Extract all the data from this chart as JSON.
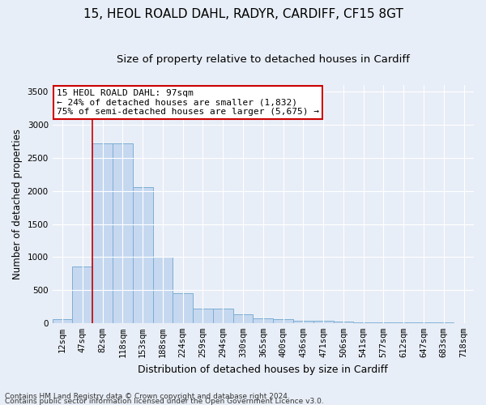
{
  "title1": "15, HEOL ROALD DAHL, RADYR, CARDIFF, CF15 8GT",
  "title2": "Size of property relative to detached houses in Cardiff",
  "xlabel": "Distribution of detached houses by size in Cardiff",
  "ylabel": "Number of detached properties",
  "footer1": "Contains HM Land Registry data © Crown copyright and database right 2024.",
  "footer2": "Contains public sector information licensed under the Open Government Licence v3.0.",
  "bin_labels": [
    "12sqm",
    "47sqm",
    "82sqm",
    "118sqm",
    "153sqm",
    "188sqm",
    "224sqm",
    "259sqm",
    "294sqm",
    "330sqm",
    "365sqm",
    "400sqm",
    "436sqm",
    "471sqm",
    "506sqm",
    "541sqm",
    "577sqm",
    "612sqm",
    "647sqm",
    "683sqm",
    "718sqm"
  ],
  "bar_values": [
    55,
    855,
    2720,
    2720,
    2060,
    1005,
    450,
    215,
    215,
    130,
    70,
    55,
    35,
    30,
    25,
    10,
    10,
    5,
    5,
    5,
    0
  ],
  "bar_color": "#c5d8f0",
  "bar_edge_color": "#7daed4",
  "bg_color": "#e8eef7",
  "grid_color": "#ffffff",
  "vline_x": 1.5,
  "vline_color": "#cc0000",
  "annotation_text": "15 HEOL ROALD DAHL: 97sqm\n← 24% of detached houses are smaller (1,832)\n75% of semi-detached houses are larger (5,675) →",
  "annotation_box_color": "#ffffff",
  "annotation_box_edge": "#cc0000",
  "ylim": [
    0,
    3600
  ],
  "yticks": [
    0,
    500,
    1000,
    1500,
    2000,
    2500,
    3000,
    3500
  ],
  "title1_fontsize": 11,
  "title2_fontsize": 9.5,
  "xlabel_fontsize": 9,
  "ylabel_fontsize": 8.5,
  "tick_fontsize": 7.5,
  "annot_fontsize": 8,
  "footer_fontsize": 6.5
}
